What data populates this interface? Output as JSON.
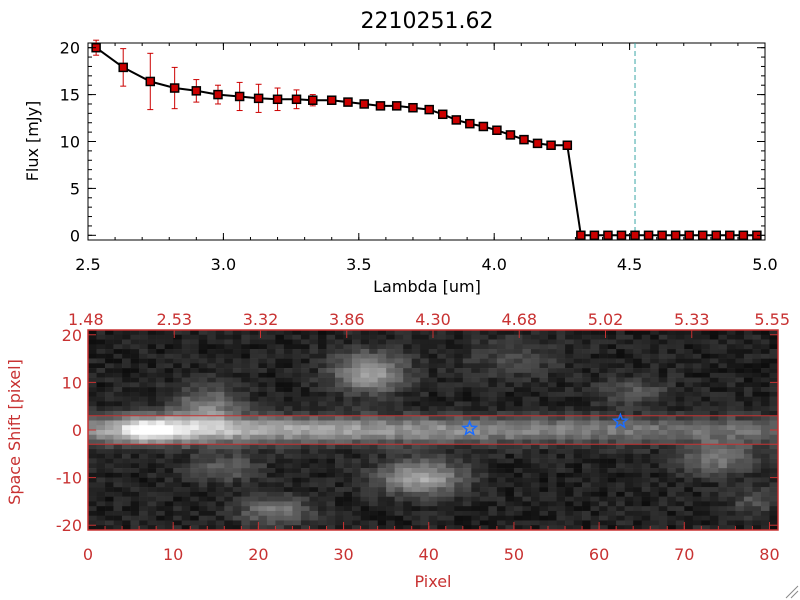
{
  "chart_data": [
    {
      "type": "line",
      "title": "2210251.62",
      "xlabel": "Lambda [um]",
      "ylabel": "Flux [mJy]",
      "xlim": [
        2.5,
        5.0
      ],
      "ylim": [
        -0.5,
        20.5
      ],
      "x_ticks": [
        "2.5",
        "3.0",
        "3.5",
        "4.0",
        "4.5",
        "5.0"
      ],
      "y_ticks": [
        "0",
        "5",
        "10",
        "15",
        "20"
      ],
      "vline_x": 4.52,
      "series": [
        {
          "name": "flux",
          "x": [
            2.53,
            2.63,
            2.73,
            2.82,
            2.9,
            2.98,
            3.06,
            3.13,
            3.2,
            3.27,
            3.33,
            3.4,
            3.46,
            3.52,
            3.58,
            3.64,
            3.7,
            3.76,
            3.81,
            3.86,
            3.91,
            3.96,
            4.01,
            4.06,
            4.11,
            4.16,
            4.21,
            4.27,
            4.32,
            4.37,
            4.42,
            4.47,
            4.52,
            4.57,
            4.62,
            4.67,
            4.72,
            4.77,
            4.82,
            4.87,
            4.92,
            4.97
          ],
          "y": [
            20.0,
            17.9,
            16.4,
            15.7,
            15.4,
            15.0,
            14.8,
            14.6,
            14.5,
            14.5,
            14.4,
            14.4,
            14.2,
            14.0,
            13.8,
            13.8,
            13.6,
            13.4,
            12.9,
            12.3,
            11.9,
            11.6,
            11.2,
            10.7,
            10.2,
            9.8,
            9.6,
            9.6,
            0.0,
            0.0,
            0.0,
            0.0,
            0.0,
            0.0,
            0.0,
            0.0,
            0.0,
            0.0,
            0.0,
            0.0,
            0.0,
            0.0
          ],
          "yerr": [
            0.8,
            2.0,
            3.0,
            2.2,
            1.2,
            1.0,
            1.5,
            1.5,
            1.2,
            1.0,
            0.6,
            0.4,
            0.2,
            0.1,
            0.1,
            0.1,
            0.1,
            0.1,
            0.1,
            0.1,
            0.1,
            0.1,
            0.1,
            0.1,
            0.1,
            0.1,
            0.1,
            0.1,
            0,
            0,
            0,
            0,
            0,
            0,
            0,
            0,
            0,
            0,
            0,
            0,
            0,
            0
          ]
        }
      ]
    },
    {
      "type": "heatmap",
      "xlabel": "Pixel",
      "ylabel": "Space Shift [pixel]",
      "xlim": [
        0,
        81
      ],
      "ylim": [
        -21,
        21
      ],
      "x_ticks": [
        "0",
        "10",
        "20",
        "30",
        "40",
        "50",
        "60",
        "70",
        "80"
      ],
      "y_ticks": [
        "-20",
        "-10",
        "0",
        "10",
        "20"
      ],
      "top_axis_ticks": [
        "1.48",
        "2.53",
        "3.32",
        "3.86",
        "4.30",
        "4.68",
        "5.02",
        "5.33",
        "5.55"
      ],
      "aperture_y": [
        3,
        -3
      ],
      "trace_profile": [
        0.45,
        0.5,
        0.55,
        0.65,
        0.8,
        0.95,
        1.0,
        1.0,
        0.97,
        0.9,
        0.82,
        0.75,
        0.7,
        0.66,
        0.63,
        0.61,
        0.6,
        0.58,
        0.57,
        0.56,
        0.55,
        0.54,
        0.54,
        0.53,
        0.53,
        0.52,
        0.52,
        0.51,
        0.51,
        0.5,
        0.5,
        0.5,
        0.49,
        0.49,
        0.48,
        0.48,
        0.47,
        0.47,
        0.46,
        0.46,
        0.45,
        0.45,
        0.44,
        0.44,
        0.43,
        0.43,
        0.42,
        0.42,
        0.41,
        0.41,
        0.4,
        0.4,
        0.39,
        0.39,
        0.38,
        0.38,
        0.37,
        0.37,
        0.36,
        0.36,
        0.35,
        0.35,
        0.34,
        0.34,
        0.33,
        0.33,
        0.32,
        0.32,
        0.31,
        0.31,
        0.3,
        0.3,
        0.3,
        0.3,
        0.3,
        0.3,
        0.3,
        0.3,
        0.3,
        0.3,
        0.3
      ],
      "blobs": [
        {
          "x": 33,
          "y": 12,
          "amp": 0.5,
          "sx": 3,
          "sy": 3
        },
        {
          "x": 14,
          "y": 5,
          "amp": 0.35,
          "sx": 3,
          "sy": 3
        },
        {
          "x": 39,
          "y": -10,
          "amp": 0.55,
          "sx": 3.5,
          "sy": 2.5
        },
        {
          "x": 22,
          "y": -17,
          "amp": 0.35,
          "sx": 3,
          "sy": 2
        },
        {
          "x": 74,
          "y": -6,
          "amp": 0.35,
          "sx": 3,
          "sy": 2.5
        },
        {
          "x": 16,
          "y": -8,
          "amp": 0.25,
          "sx": 3,
          "sy": 2
        },
        {
          "x": 64,
          "y": 8,
          "amp": 0.2,
          "sx": 3,
          "sy": 2
        },
        {
          "x": 78,
          "y": -15,
          "amp": 0.2,
          "sx": 2,
          "sy": 2
        },
        {
          "x": 50,
          "y": 15,
          "amp": 0.15,
          "sx": 4,
          "sy": 3
        }
      ],
      "stars": [
        {
          "x": 44.8,
          "y": 0.3
        },
        {
          "x": 62.5,
          "y": 1.8
        }
      ]
    }
  ],
  "colors": {
    "axis_top": "#000000",
    "axis_bottom": "#c83232",
    "points": "#cc0000",
    "errorbar": "#cc0000",
    "line": "#000000",
    "vline": "#3aa6a6",
    "aperture": "#c83232",
    "star": "#1a6cff"
  }
}
